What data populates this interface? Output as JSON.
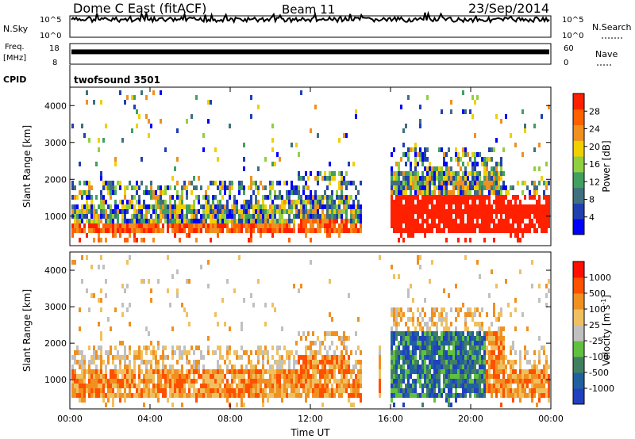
{
  "header": {
    "station": "Dome C East (fitACF)",
    "beam": "Beam 11",
    "date": "23/Sep/2014"
  },
  "chart_data": [
    {
      "type": "line",
      "panel": "noise",
      "left_label": "N.Sky",
      "right_label": "N.Search",
      "left_ticks": [
        "10^5",
        "10^0"
      ],
      "right_ticks": [
        "10^5",
        "10^0"
      ],
      "level": 0.82
    },
    {
      "type": "line",
      "panel": "frequency",
      "left_label_1": "Freq.",
      "left_label_2": "[MHz]",
      "right_label": "Nave",
      "left_ticks": [
        18,
        8
      ],
      "right_ticks": [
        60,
        0
      ],
      "level": 0.6
    },
    {
      "type": "table",
      "panel": "cpid",
      "label": "CPID",
      "value": "twofsound 3501"
    },
    {
      "type": "heatmap",
      "panel": "power",
      "ylabel": "Slant Range [km]",
      "ylim": [
        200,
        4500
      ],
      "yticks": [
        1000,
        2000,
        3000,
        4000
      ],
      "colorbar_label": "Power [dB]",
      "colorbar_ticks": [
        "28",
        "24",
        "20",
        "16",
        "12",
        "8",
        "4"
      ],
      "colors": [
        "#0000ff",
        "#2040b0",
        "#407080",
        "#40a060",
        "#90d040",
        "#f0d000",
        "#f09020",
        "#ff6000",
        "#ff2000"
      ]
    },
    {
      "type": "heatmap",
      "panel": "velocity",
      "ylabel": "Slant Range [km]",
      "ylim": [
        200,
        4500
      ],
      "yticks": [
        1000,
        2000,
        3000,
        4000
      ],
      "xlabel": "Time UT",
      "xticks": [
        "00:00",
        "04:00",
        "08:00",
        "12:00",
        "16:00",
        "20:00",
        "00:00"
      ],
      "colorbar_label": "Velocity [m s",
      "colorbar_unit_sup": "-1",
      "colorbar_unit_end": "]",
      "colorbar_ticks": [
        "1000",
        "500",
        "100",
        "25",
        "-25",
        "-100",
        "-500",
        "-1000"
      ],
      "colors": [
        "#2040c0",
        "#2060a0",
        "#408060",
        "#60c040",
        "#c0c0c0",
        "#f0c060",
        "#f09020",
        "#ff5000",
        "#ff1000"
      ]
    }
  ]
}
